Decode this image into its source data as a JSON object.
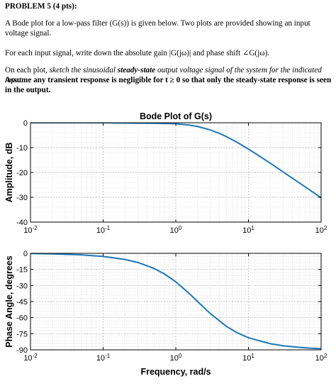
{
  "problem": {
    "heading": "PROBLEM 5 (4 pts):",
    "intro": "A Bode plot for a low-pass filter (G(s)) is given below. Two plots are provided showing an input voltage signal.",
    "instruction1": "For each input signal, write down the absolute gain |G(jω)| and phase shift ∠G(jω).",
    "instruction2_lead": "On each plot, ",
    "instruction2_italic": "sketch the sinusoidal ",
    "instruction2_bold_italic": "steady-state",
    "instruction2_italic_end": " output voltage signal of the system for the indicated input.",
    "instruction3": "Assume any transient response is negligible for t ≥ 0 so that only the steady-state response is seen in the output."
  },
  "chart_data": [
    {
      "type": "line",
      "title": "Bode Plot of G(s)",
      "xlabel": "",
      "ylabel": "Amplitude, dB",
      "xscale": "log",
      "xlim": [
        0.01,
        100
      ],
      "ylim": [
        -40,
        0
      ],
      "xticks": [
        0.01,
        0.1,
        1,
        10,
        100
      ],
      "xtick_labels": [
        "10-2",
        "10-1",
        "100",
        "101",
        "102"
      ],
      "yticks": [
        0,
        -10,
        -20,
        -30,
        -40
      ],
      "ytick_labels": [
        "0",
        "-10",
        "-20",
        "-30",
        "-40"
      ],
      "grid": true,
      "color": "#1f77b4",
      "series": [
        {
          "x": [
            0.01,
            0.02,
            0.05,
            0.1,
            0.2,
            0.5,
            1,
            1.5,
            2,
            3,
            4,
            5,
            7,
            10,
            15,
            20,
            30,
            50,
            70,
            100
          ],
          "y": [
            0,
            0,
            0,
            0,
            -0.1,
            -0.2,
            -0.4,
            -0.9,
            -1.5,
            -2.9,
            -4.3,
            -5.6,
            -7.9,
            -10.6,
            -13.9,
            -16.3,
            -19.8,
            -24.2,
            -27.1,
            -30.2
          ]
        }
      ]
    },
    {
      "type": "line",
      "title": "",
      "xlabel": "Frequency, rad/s",
      "ylabel": "Phase Angle, degrees",
      "xscale": "log",
      "xlim": [
        0.01,
        100
      ],
      "ylim": [
        -90,
        0
      ],
      "xticks": [
        0.01,
        0.1,
        1,
        10,
        100
      ],
      "xtick_labels": [
        "10-2",
        "10-1",
        "100",
        "101",
        "102"
      ],
      "yticks": [
        0,
        -15,
        -30,
        -45,
        -60,
        -75,
        -90
      ],
      "ytick_labels": [
        "0",
        "-15",
        "-30",
        "-45",
        "-60",
        "-75",
        "-90"
      ],
      "grid": true,
      "color": "#1f77b4",
      "series": [
        {
          "x": [
            0.01,
            0.02,
            0.05,
            0.1,
            0.2,
            0.3,
            0.5,
            0.7,
            1,
            1.5,
            2,
            3,
            5,
            7,
            10,
            20,
            30,
            50,
            70,
            100
          ],
          "y": [
            -0.2,
            -0.5,
            -1.4,
            -2.9,
            -5.7,
            -8.5,
            -14,
            -19.3,
            -26.6,
            -36.9,
            -45,
            -56.3,
            -68.2,
            -74.1,
            -78.7,
            -84.3,
            -86.2,
            -87.7,
            -88.4,
            -88.9
          ]
        }
      ]
    }
  ]
}
